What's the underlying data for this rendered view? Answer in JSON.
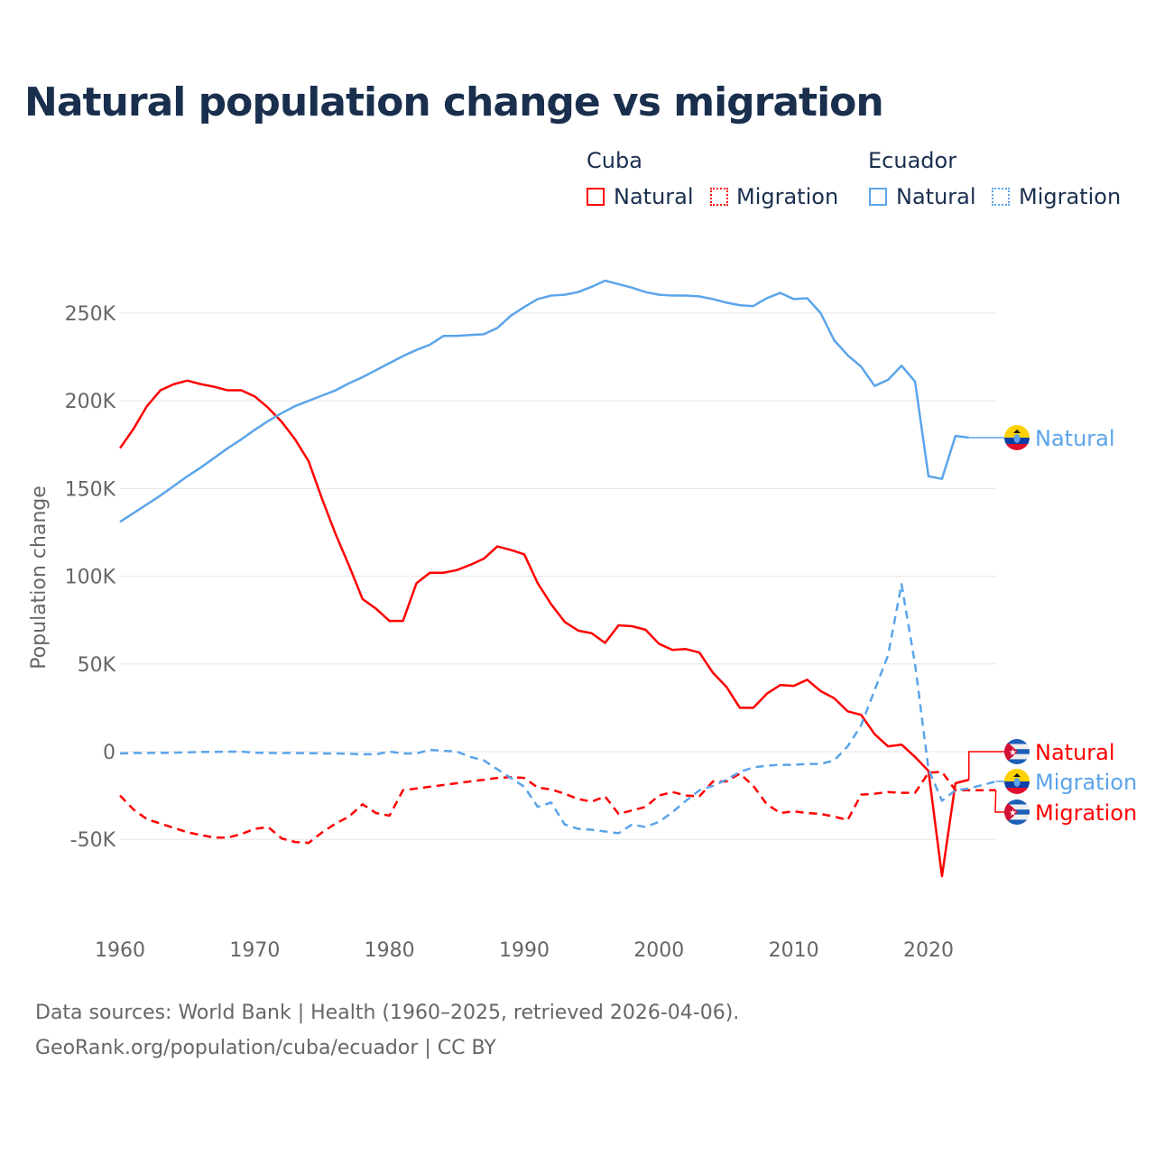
{
  "title": "Natural population change vs migration",
  "legend": {
    "groups": [
      {
        "name": "Cuba",
        "items": [
          "Natural",
          "Migration"
        ],
        "color": "#ff0000"
      },
      {
        "name": "Ecuador",
        "items": [
          "Natural",
          "Migration"
        ],
        "color": "#5ba4ea"
      }
    ]
  },
  "footer": {
    "line1": "Data sources: World Bank | Health (1960–2025, retrieved 2026-04-06).",
    "line2": "GeoRank.org/population/cuba/ecuador | CC BY"
  },
  "chart_data": {
    "type": "line",
    "title": "Natural population change vs migration",
    "xlabel": "",
    "ylabel": "Population change",
    "xlim": [
      1960,
      2025
    ],
    "ylim": [
      -100000,
      290000
    ],
    "xticks": [
      1960,
      1970,
      1980,
      1990,
      2000,
      2010,
      2020
    ],
    "yticks": [
      -50000,
      0,
      50000,
      100000,
      150000,
      200000,
      250000
    ],
    "ytick_labels": [
      "-50K",
      "0",
      "50K",
      "100K",
      "150K",
      "200K",
      "250K"
    ],
    "grid": true,
    "series": [
      {
        "name": "Natural",
        "country": "Cuba",
        "color": "#ff0000",
        "dash": false,
        "start": 1960,
        "end_label": "Natural",
        "flag": "cuba",
        "values": [
          173,
          184,
          197,
          206,
          209.5,
          211.5,
          209.5,
          208,
          206,
          206,
          202.5,
          196,
          188,
          178,
          165.5,
          144,
          124,
          106,
          87,
          81.5,
          74.5,
          74.5,
          96,
          102,
          102,
          103.5,
          106.5,
          110,
          117,
          115,
          112.5,
          96,
          84,
          74,
          69,
          67.5,
          62,
          72,
          71.5,
          69.5,
          61.5,
          58,
          58.5,
          56.5,
          45,
          37,
          25,
          25,
          33,
          38,
          37.5,
          41,
          34.5,
          30.5,
          23,
          21,
          10,
          3,
          4,
          -3,
          -11,
          -71,
          -18,
          -16
        ]
      },
      {
        "name": "Migration",
        "country": "Cuba",
        "color": "#ff0000",
        "dash": true,
        "start": 1960,
        "end_label": "Migration",
        "flag": "cuba",
        "values": [
          -25,
          -33,
          -38.5,
          -41,
          -43.5,
          -46,
          -47.5,
          -49,
          -49,
          -47,
          -44,
          -43,
          -49.5,
          -51.5,
          -52,
          -46,
          -41,
          -37,
          -30,
          -35,
          -36.5,
          -22,
          -21,
          -20,
          -19,
          -18,
          -17,
          -16,
          -15,
          -14.5,
          -15,
          -20.5,
          -21.5,
          -24,
          -27,
          -28.5,
          -25.5,
          -35.5,
          -33.5,
          -31.5,
          -25,
          -23,
          -25,
          -25.5,
          -17,
          -17,
          -12.5,
          -19.5,
          -30,
          -35,
          -34,
          -35,
          -35.5,
          -37,
          -39,
          -24.5,
          -24,
          -23,
          -23.5,
          -23.5,
          -12,
          -11.5,
          -22,
          -22,
          -22,
          -22
        ]
      },
      {
        "name": "Natural",
        "country": "Ecuador",
        "color": "#5ba4ea",
        "dash": false,
        "start": 1960,
        "end_label": "Natural",
        "flag": "ecuador",
        "values": [
          131,
          136,
          141,
          146,
          151.5,
          157,
          162,
          167.5,
          173,
          178,
          183.5,
          188.5,
          193,
          197,
          200,
          203,
          206,
          210,
          213.5,
          217.5,
          221.5,
          225.5,
          229,
          232,
          237,
          237,
          237.5,
          238,
          241.5,
          248.5,
          253.5,
          258,
          260,
          260.5,
          262,
          265,
          268.5,
          266.5,
          264.5,
          262,
          260.5,
          260,
          260,
          259.5,
          258,
          256,
          254.5,
          254,
          258.5,
          261.5,
          258,
          258.5,
          250,
          234.5,
          226,
          219.5,
          208.5,
          212,
          220,
          211,
          157,
          155.5,
          180,
          179
        ]
      },
      {
        "name": "Migration",
        "country": "Ecuador",
        "color": "#5ba4ea",
        "dash": true,
        "start": 1960,
        "end_label": "Migration",
        "flag": "ecuador",
        "values": [
          -1,
          -0.8,
          -0.8,
          -0.7,
          -0.6,
          -0.4,
          -0.2,
          -0.1,
          0,
          0,
          -0.6,
          -0.8,
          -0.8,
          -0.8,
          -0.9,
          -1,
          -1,
          -1.2,
          -1.5,
          -1.5,
          0,
          -1,
          -1,
          1,
          0.5,
          0,
          -3,
          -5,
          -10,
          -15,
          -20,
          -31.5,
          -29,
          -41.5,
          -44,
          -44.5,
          -45.5,
          -46.5,
          -41.5,
          -43,
          -40,
          -34.5,
          -28,
          -22,
          -19.5,
          -16,
          -11.5,
          -9,
          -8,
          -7.5,
          -7.5,
          -7,
          -7,
          -5,
          3,
          15,
          35,
          55,
          95.5,
          50,
          -10,
          -28,
          -22,
          -21,
          -19,
          -17
        ]
      }
    ],
    "value_unit": "thousands"
  }
}
